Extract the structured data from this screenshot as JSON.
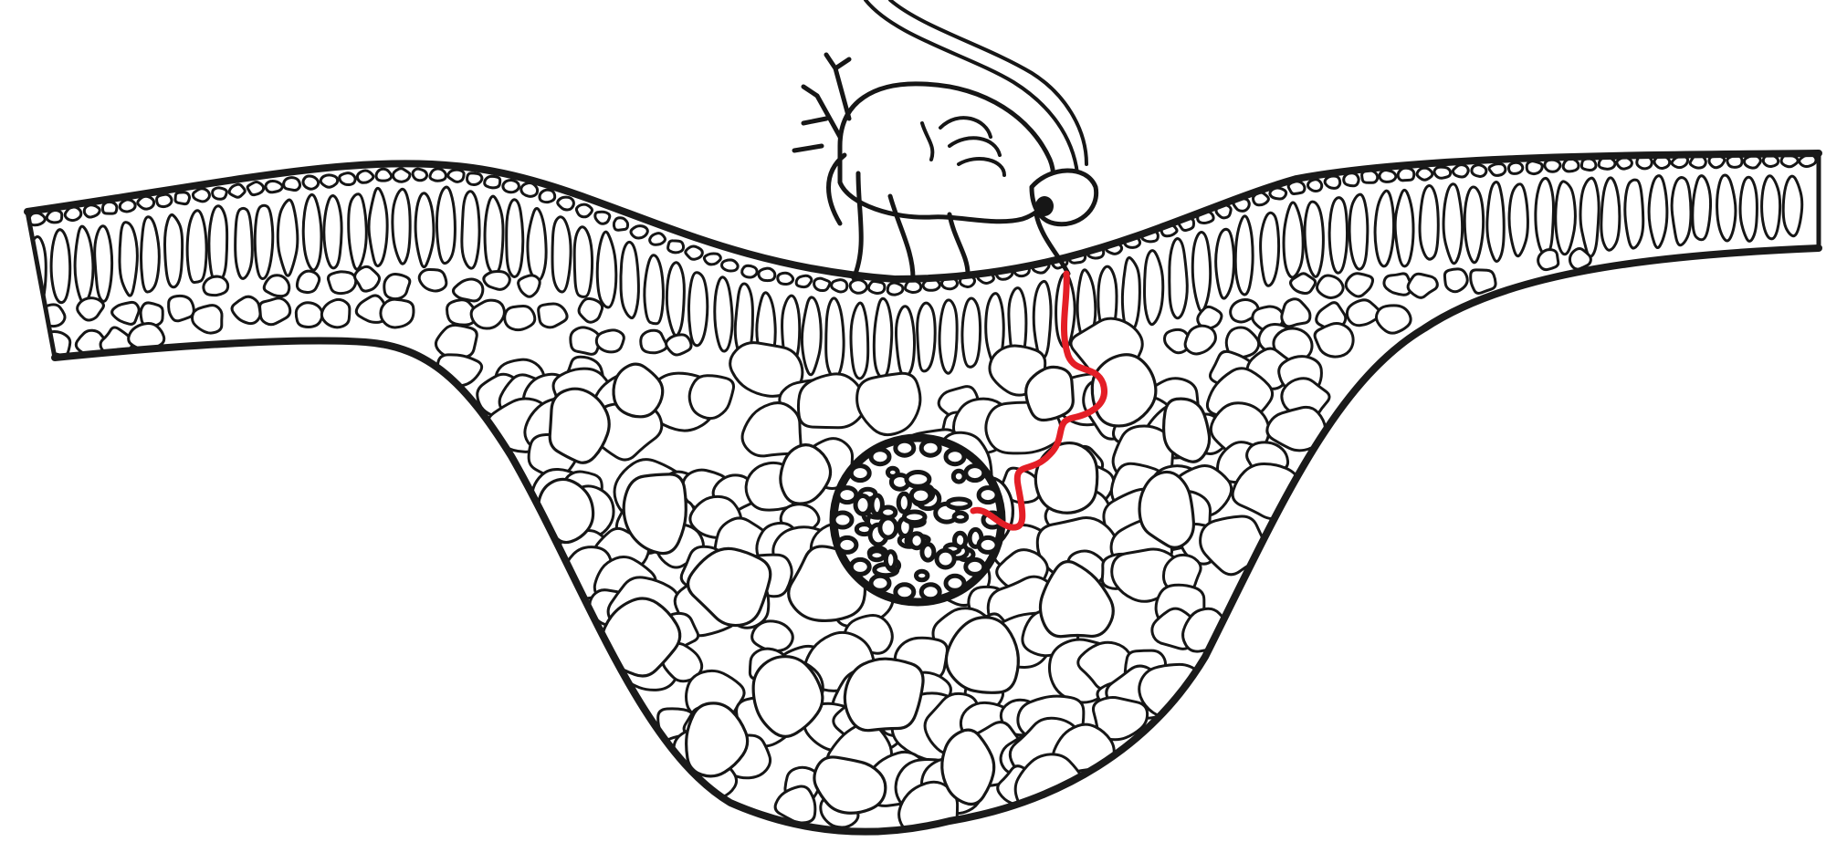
{
  "figure": {
    "subject": "leaf-cross-section-with-feeding-insect",
    "labels": []
  },
  "colors": {
    "background": "#ffffff",
    "ink": "#161616",
    "stylet_path": "#e41e26",
    "cell_fill": "#ffffff"
  },
  "parts": {
    "lamina": "leaf-blade",
    "midrib": "midrib",
    "palisade": "palisade-layer",
    "spongy": "spongy-mesophyll",
    "bundle": "vascular-bundle",
    "insect": "insect",
    "stylet": "stylet-track"
  }
}
